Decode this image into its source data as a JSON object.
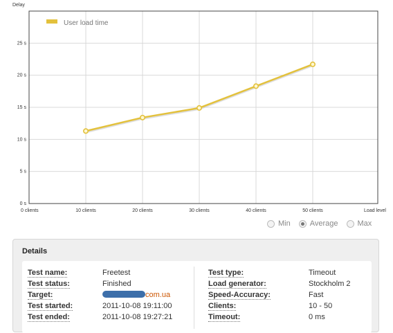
{
  "chart_data": {
    "type": "line",
    "ylabel": "Delay",
    "xlabel": "Load level",
    "x_ticks": [
      "0 clients",
      "10 clients",
      "20 clients",
      "30 clients",
      "40 clients",
      "50 clients",
      "Load level"
    ],
    "y_ticks": [
      "0 s",
      "5 s",
      "10 s",
      "15 s",
      "20 s",
      "25 s"
    ],
    "ylim": [
      0,
      30
    ],
    "grid": true,
    "legend_position": "top-left",
    "series": [
      {
        "name": "User load time",
        "color": "#e3c13c",
        "x": [
          10,
          20,
          30,
          40,
          50
        ],
        "values": [
          11.3,
          13.4,
          14.9,
          18.3,
          21.7
        ]
      }
    ]
  },
  "view_options": {
    "items": [
      {
        "label": "Min",
        "checked": false
      },
      {
        "label": "Average",
        "checked": true
      },
      {
        "label": "Max",
        "checked": false
      }
    ]
  },
  "details": {
    "title": "Details",
    "left": [
      {
        "label": "Test name:",
        "value": "Freetest"
      },
      {
        "label": "Test status:",
        "value": "Finished"
      },
      {
        "label": "Target:",
        "value": "com.ua",
        "masked": true
      },
      {
        "label": "Test started:",
        "value": "2011-10-08 19:11:00"
      },
      {
        "label": "Test ended:",
        "value": "2011-10-08 19:27:21"
      }
    ],
    "right": [
      {
        "label": "Test type:",
        "value": "Timeout"
      },
      {
        "label": "Load generator:",
        "value": "Stockholm 2"
      },
      {
        "label": "Speed-Accuracy:",
        "value": "Fast"
      },
      {
        "label": "Clients:",
        "value": "10 - 50"
      },
      {
        "label": "Timeout:",
        "value": "0 ms"
      }
    ]
  }
}
